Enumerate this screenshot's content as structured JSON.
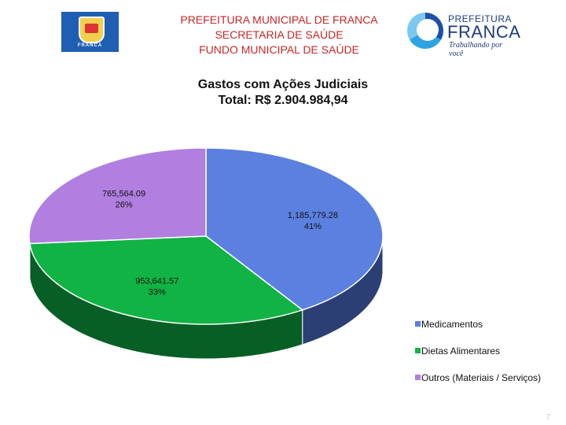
{
  "header": {
    "lines": [
      "PREFEITURA MUNICIPAL DE FRANCA",
      "SECRETARIA DE SAÚDE",
      "FUNDO MUNICIPAL DE SAÚDE"
    ],
    "left_logo_caption": "FRANCA",
    "right_logo": {
      "line1": "PREFEITURA",
      "line2": "FRANCA",
      "tagline": "Trabalhando por você"
    }
  },
  "chart_data": {
    "type": "pie",
    "title": "Gastos com Ações Judiciais",
    "subtitle": "Total: R$ 2.904.984,94",
    "slices": [
      {
        "name": "Medicamentos",
        "value": 1185779.28,
        "value_label": "1,185,779.28",
        "percent_label": "41%",
        "color": "#5b80e0",
        "side_color": "#2b3f74"
      },
      {
        "name": "Dietas Alimentares",
        "value": 953641.57,
        "value_label": "953,641.57",
        "percent_label": "33%",
        "color": "#11b344",
        "side_color": "#075f25"
      },
      {
        "name": "Outros (Materiais / Serviços)",
        "value": 765564.09,
        "value_label": "765,564.09",
        "percent_label": "26%",
        "color": "#b07fe0",
        "side_color": "#6a4690"
      }
    ],
    "legend_position": "bottom-right"
  },
  "page_number": "7"
}
